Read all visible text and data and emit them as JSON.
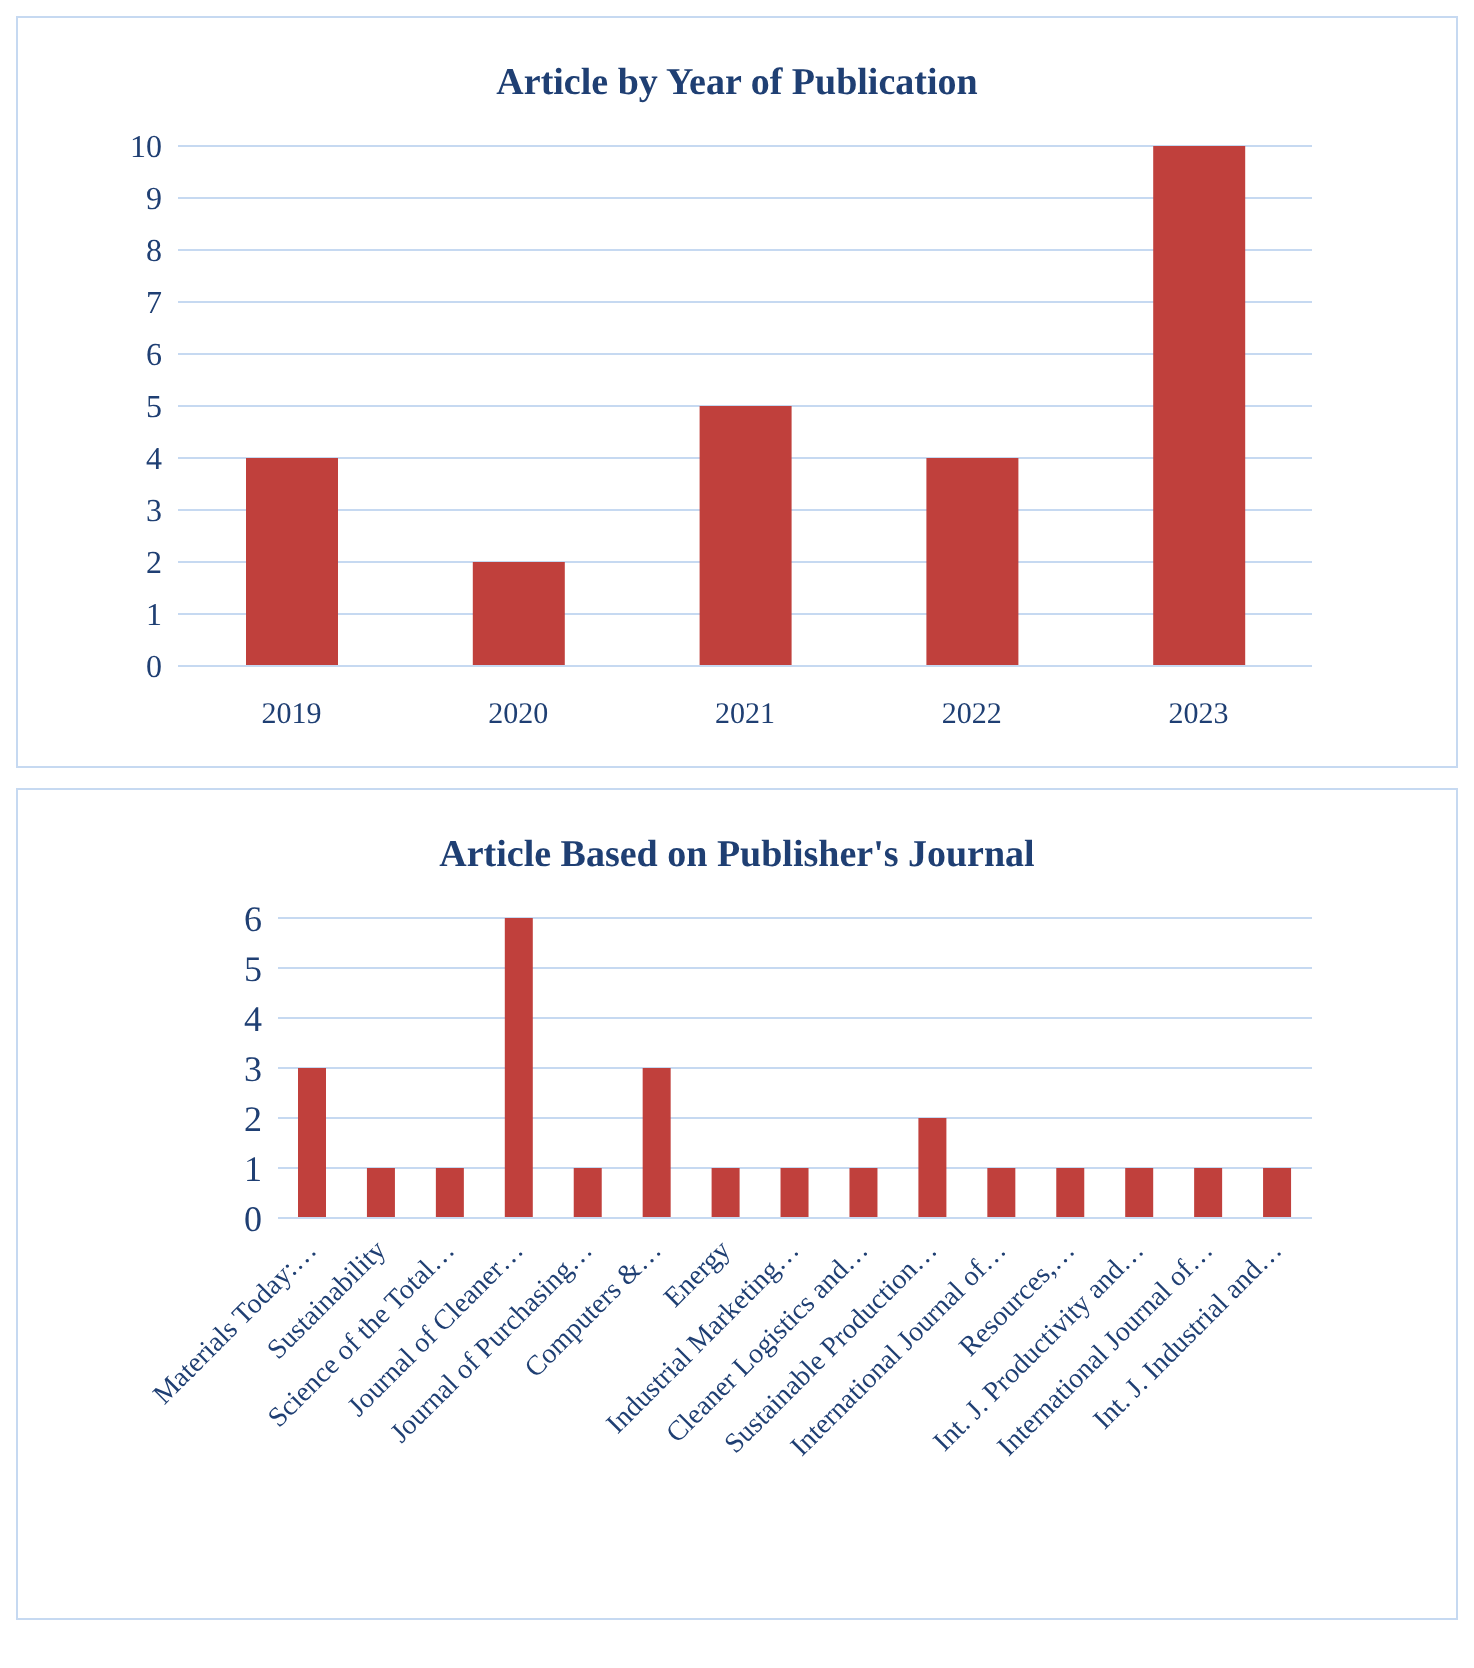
{
  "chart_data": [
    {
      "type": "bar",
      "title": "Article by Year of Publication",
      "categories": [
        "2019",
        "2020",
        "2021",
        "2022",
        "2023"
      ],
      "values": [
        4,
        2,
        5,
        4,
        10
      ],
      "color": "#c0403c",
      "ylim": [
        0,
        10
      ],
      "yticks": [
        0,
        1,
        2,
        3,
        4,
        5,
        6,
        7,
        8,
        9,
        10
      ],
      "grid": "y"
    },
    {
      "type": "bar",
      "title": "Article Based on Publisher's Journal",
      "categories": [
        "Materials Today:…",
        "Sustainability",
        "Science of the Total…",
        "Journal of Cleaner…",
        "Journal of Purchasing…",
        "Computers &…",
        "Energy",
        "Industrial Marketing…",
        "Cleaner Logistics and…",
        "Sustainable Production…",
        "International Journal of…",
        "Resources,…",
        "Int. J. Productivity and…",
        "International Journal of…",
        "Int. J. Industrial and…"
      ],
      "values": [
        3,
        1,
        1,
        6,
        1,
        3,
        1,
        1,
        1,
        2,
        1,
        1,
        1,
        1,
        1
      ],
      "color": "#c0403c",
      "ylim": [
        0,
        6
      ],
      "yticks": [
        0,
        1,
        2,
        3,
        4,
        5,
        6
      ],
      "grid": "y"
    }
  ]
}
